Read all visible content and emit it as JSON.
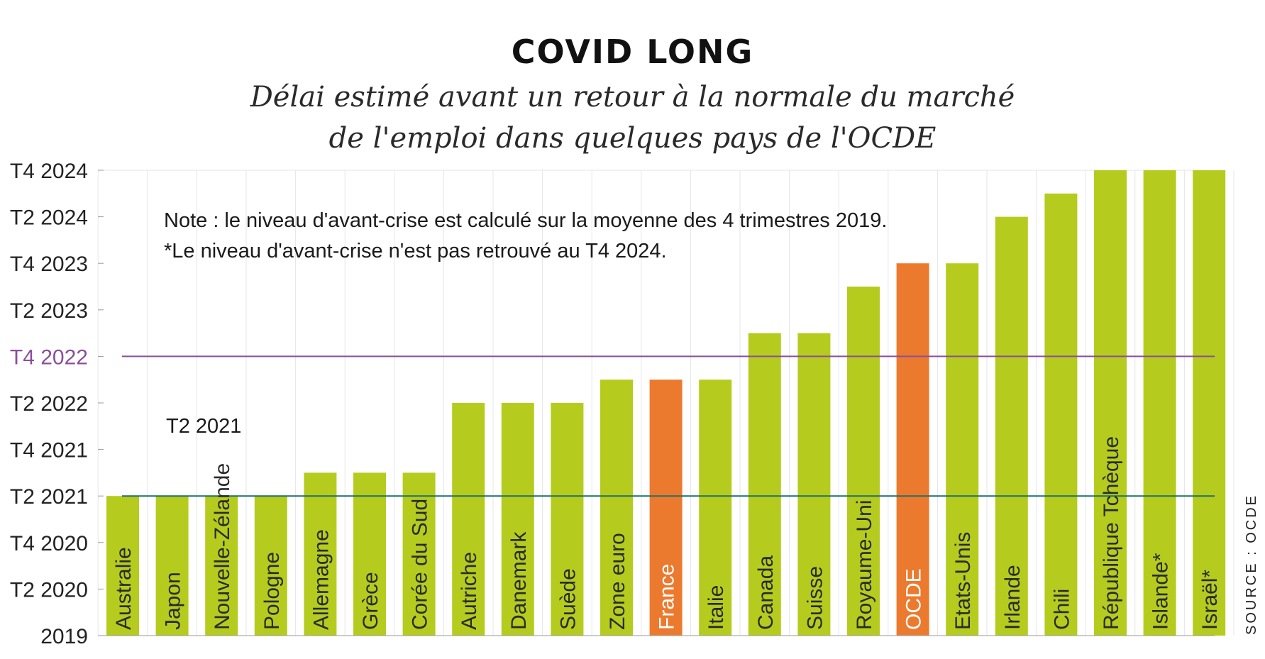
{
  "chart_data": {
    "type": "bar",
    "title": "COVID LONG",
    "subtitle_lines": [
      "Délai estimé avant un retour à la normale du marché",
      "de l'emploi dans quelques pays de l'OCDE"
    ],
    "categories": [
      "Australie",
      "Japon",
      "Nouvelle-Zélande",
      "Pologne",
      "Allemagne",
      "Grèce",
      "Corée du Sud",
      "Autriche",
      "Danemark",
      "Suède",
      "Zone euro",
      "France",
      "Italie",
      "Canada",
      "Suisse",
      "Royaume-Uni",
      "OCDE",
      "Etats-Unis",
      "Irlande",
      "Chili",
      "République Tchèque",
      "Islande*",
      "Israël*"
    ],
    "values": [
      "T2 2021",
      "T2 2021",
      "T2 2021",
      "T2 2021",
      "T3 2021",
      "T3 2021",
      "T3 2021",
      "T2 2022",
      "T2 2022",
      "T2 2022",
      "T3 2022",
      "T3 2022",
      "T3 2022",
      "T1 2023",
      "T1 2023",
      "T3 2023",
      "T4 2023",
      "T4 2023",
      "T2 2024",
      "T3 2024",
      "T4 2024",
      "T4 2024",
      "T4 2024"
    ],
    "highlighted": [
      "France",
      "OCDE"
    ],
    "y_ticks": [
      "2019",
      "T2 2020",
      "T4 2020",
      "T2 2021",
      "T4 2021",
      "T2 2022",
      "T4 2022",
      "T2 2023",
      "T4 2023",
      "T2 2024",
      "T4 2024"
    ],
    "y_range": [
      "2019",
      "T4 2024"
    ],
    "reference_lines": [
      {
        "value": "T2 2021",
        "label": "T2 2021",
        "color": "#1f6f6a"
      },
      {
        "value": "T4 2022",
        "label": "T4 2022",
        "color": "#8b4f9a"
      }
    ],
    "notes": [
      "Note : le niveau d'avant-crise est calculé sur la moyenne des 4 trimestres 2019.",
      "*Le niveau d'avant-crise n'est pas retrouvé au T4 2024."
    ],
    "source": "SOURCE : OCDE",
    "grid": "vertical",
    "colors": {
      "bar": "#b5cc1f",
      "highlight": "#ec7a2e",
      "grid": "#e6e6e6"
    }
  }
}
